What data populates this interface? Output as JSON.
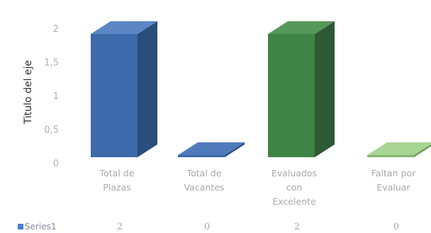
{
  "chart_data": {
    "type": "bar",
    "three_d": true,
    "categories": [
      [
        "Total de",
        "Plazas"
      ],
      [
        "Total de",
        "Vacantes"
      ],
      [
        "Evaluados",
        "con",
        "Excelente"
      ],
      [
        "Faltan por",
        "Evaluar"
      ]
    ],
    "series": [
      {
        "name": "Series1",
        "values": [
          2,
          0,
          2,
          0
        ]
      }
    ],
    "ylabel": "Titulo del eje",
    "ylim": [
      0,
      2
    ],
    "yticks": [
      "0",
      "0,5",
      "1",
      "1,5",
      "2"
    ],
    "table_values": [
      "2",
      "0",
      "2",
      "0"
    ],
    "legend_marker_color": "#4a7fd0",
    "bar_colors": [
      {
        "front": "#3d6aa8",
        "side": "#2b4d7c",
        "top": "#5b86c4"
      },
      {
        "front": "#3d6aa8",
        "side": "#2b4d7c",
        "top": "#4f7bbd"
      },
      {
        "front": "#3e8444",
        "side": "#2d5a34",
        "top": "#56975a"
      },
      {
        "front": "#84b770",
        "side": "#6a9a5a",
        "top": "#a8d494"
      }
    ],
    "grid": false
  }
}
